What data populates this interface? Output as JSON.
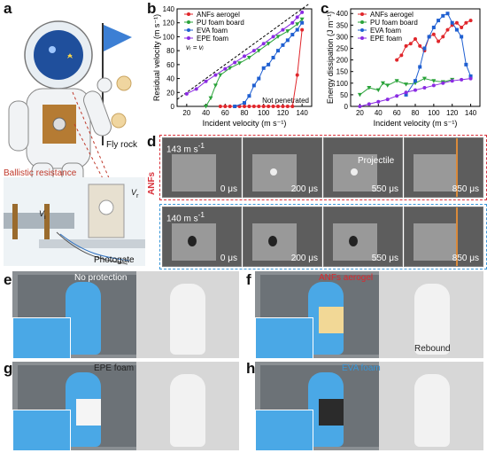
{
  "panels": {
    "a": {
      "letter": "a",
      "fly_rock": "Fly rock",
      "ballistic": "Ballistic resistance",
      "vi": "V",
      "vi_sub": "i",
      "vr": "V",
      "vr_sub": "r",
      "photogate": "Photogate"
    },
    "b": {
      "letter": "b"
    },
    "c": {
      "letter": "c"
    },
    "d": {
      "letter": "d",
      "row1": {
        "label": "ANFs",
        "speed": "143 m s",
        "sup": "-1",
        "times": [
          "0 μs",
          "200 μs",
          "550 μs",
          "850 μs"
        ],
        "projectile": "Projectile"
      },
      "row2": {
        "speed": "140 m s",
        "sup": "-1",
        "times": [
          "0 μs",
          "200 μs",
          "550 μs",
          "850 μs"
        ]
      }
    },
    "e": {
      "letter": "e",
      "title": "No protection"
    },
    "f": {
      "letter": "f",
      "title": "ANFs aerogel",
      "rebound": "Rebound"
    },
    "g": {
      "letter": "g",
      "title": "EPE foam"
    },
    "h": {
      "letter": "h",
      "title": "EVA foam"
    }
  },
  "colors": {
    "anf": "#e0262b",
    "pu": "#2aa33a",
    "eva": "#1f5fd1",
    "epe": "#8a2be2",
    "row1_border": "#d9303a",
    "row2_border": "#3a97d8",
    "blue_toy": "#4aa8e6"
  },
  "chart_data": [
    {
      "type": "line",
      "xlabel": "Incident velocity (m s⁻¹)",
      "ylabel": "Residual velocity (m s⁻¹)",
      "xlim": [
        10,
        150
      ],
      "ylim": [
        0,
        140
      ],
      "xticks": [
        20,
        40,
        60,
        80,
        100,
        120,
        140
      ],
      "yticks": [
        0,
        20,
        40,
        60,
        80,
        100,
        120,
        140
      ],
      "legend": "top-left",
      "annotations": [
        "vᵣ = vᵢ",
        "Not penetrated"
      ],
      "series": [
        {
          "name": "ANFs aerogel",
          "color": "#e0262b",
          "marker": "circle",
          "x": [
            55,
            60,
            65,
            70,
            75,
            80,
            85,
            90,
            95,
            100,
            105,
            110,
            115,
            120,
            125,
            130,
            135,
            140
          ],
          "y": [
            0,
            0,
            0,
            0,
            0,
            0,
            0,
            0,
            0,
            0,
            0,
            0,
            0,
            0,
            0,
            0,
            45,
            110
          ]
        },
        {
          "name": "PU foam board",
          "color": "#2aa33a",
          "marker": "triangle-down",
          "x": [
            40,
            45,
            50,
            55,
            65,
            75,
            85,
            95,
            105,
            115,
            125,
            135,
            140
          ],
          "y": [
            0,
            12,
            30,
            45,
            55,
            62,
            70,
            80,
            90,
            100,
            108,
            118,
            125
          ]
        },
        {
          "name": "EVA foam",
          "color": "#1f5fd1",
          "marker": "square",
          "x": [
            70,
            80,
            85,
            90,
            95,
            100,
            105,
            110,
            115,
            120,
            125,
            130,
            135,
            140
          ],
          "y": [
            0,
            5,
            15,
            30,
            40,
            55,
            60,
            70,
            80,
            88,
            95,
            103,
            110,
            120
          ]
        },
        {
          "name": "EPE foam",
          "color": "#8a2be2",
          "marker": "circle",
          "x": [
            20,
            30,
            40,
            50,
            60,
            70,
            80,
            90,
            100,
            110,
            120,
            130,
            135,
            140
          ],
          "y": [
            18,
            25,
            36,
            45,
            54,
            63,
            72,
            80,
            90,
            100,
            110,
            120,
            128,
            135
          ]
        }
      ]
    },
    {
      "type": "line",
      "xlabel": "Incident velocity (m s⁻¹)",
      "ylabel": "Energy dissipation (J m⁻¹)",
      "xlim": [
        10,
        150
      ],
      "ylim": [
        0,
        420
      ],
      "xticks": [
        20,
        40,
        60,
        80,
        100,
        120,
        140
      ],
      "yticks": [
        0,
        50,
        100,
        150,
        200,
        250,
        300,
        350,
        400
      ],
      "legend": "top-left",
      "series": [
        {
          "name": "ANFs aerogel",
          "color": "#e0262b",
          "marker": "circle",
          "x": [
            60,
            65,
            70,
            75,
            80,
            85,
            90,
            95,
            100,
            105,
            110,
            115,
            120,
            125,
            130,
            135,
            140
          ],
          "y": [
            200,
            220,
            260,
            270,
            290,
            260,
            240,
            300,
            310,
            280,
            300,
            330,
            350,
            360,
            340,
            360,
            370
          ]
        },
        {
          "name": "PU foam board",
          "color": "#2aa33a",
          "marker": "triangle-down",
          "x": [
            20,
            30,
            40,
            45,
            50,
            60,
            70,
            80,
            90,
            100,
            110,
            120
          ],
          "y": [
            50,
            80,
            70,
            100,
            90,
            110,
            95,
            100,
            120,
            110,
            105,
            115
          ]
        },
        {
          "name": "EVA foam",
          "color": "#1f5fd1",
          "marker": "square",
          "x": [
            70,
            80,
            85,
            90,
            95,
            100,
            105,
            110,
            115,
            120,
            125,
            130,
            135,
            140
          ],
          "y": [
            50,
            110,
            170,
            250,
            300,
            340,
            370,
            390,
            400,
            360,
            330,
            300,
            180,
            130
          ]
        },
        {
          "name": "EPE foam",
          "color": "#8a2be2",
          "marker": "circle",
          "x": [
            20,
            30,
            40,
            50,
            60,
            70,
            80,
            90,
            100,
            110,
            120,
            130,
            140
          ],
          "y": [
            0,
            10,
            20,
            30,
            45,
            60,
            70,
            80,
            90,
            100,
            110,
            115,
            120
          ]
        }
      ]
    }
  ]
}
